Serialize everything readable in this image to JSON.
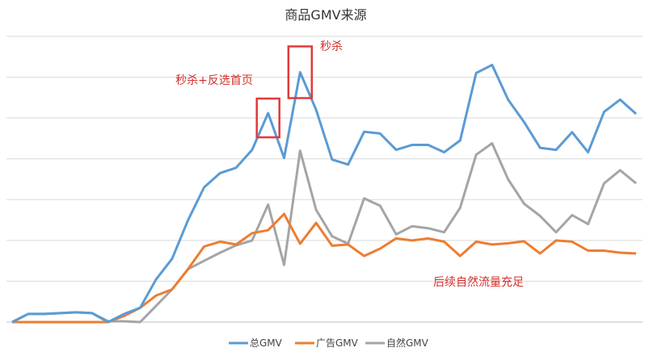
{
  "chart_data": {
    "type": "line",
    "title": "商品GMV来源",
    "xlabel": "",
    "ylabel": "",
    "ylim": [
      0,
      7
    ],
    "grid": true,
    "legend": "bottom",
    "x": [
      0,
      1,
      2,
      3,
      4,
      5,
      6,
      7,
      8,
      9,
      10,
      11,
      12,
      13,
      14,
      15,
      16,
      17,
      18,
      19,
      20,
      21,
      22,
      23,
      24,
      25,
      26,
      27,
      28,
      29,
      30,
      31,
      32,
      33,
      34,
      35,
      36,
      37,
      38,
      39
    ],
    "series": [
      {
        "name": "总GMV",
        "color": "#5b9bd5",
        "values": [
          0,
          0.2,
          0.2,
          0.22,
          0.24,
          0.22,
          0,
          0.2,
          0.35,
          1.05,
          1.55,
          2.5,
          3.3,
          3.65,
          3.78,
          4.22,
          5.12,
          4.02,
          6.12,
          5.2,
          3.98,
          3.86,
          4.66,
          4.62,
          4.22,
          4.34,
          4.34,
          4.16,
          4.45,
          6.1,
          6.3,
          5.45,
          4.9,
          4.27,
          4.22,
          4.65,
          4.16,
          5.15,
          5.45,
          5.1
        ]
      },
      {
        "name": "广告GMV",
        "color": "#ed7d31",
        "values": [
          0,
          0,
          0,
          0,
          0,
          0,
          0,
          0.15,
          0.35,
          0.65,
          0.8,
          1.3,
          1.85,
          1.97,
          1.9,
          2.18,
          2.25,
          2.65,
          1.92,
          2.43,
          1.87,
          1.9,
          1.62,
          1.8,
          2.05,
          2.0,
          2.05,
          1.97,
          1.62,
          1.97,
          1.9,
          1.93,
          1.98,
          1.68,
          2.0,
          1.97,
          1.75,
          1.75,
          1.7,
          1.68
        ]
      },
      {
        "name": "自然GMV",
        "color": "#a5a5a5",
        "values": [
          0,
          0.2,
          0.2,
          0.22,
          0.24,
          0.22,
          0.02,
          0.02,
          0,
          0.4,
          0.8,
          1.3,
          1.5,
          1.7,
          1.88,
          2.0,
          2.88,
          1.4,
          4.2,
          2.75,
          2.1,
          1.92,
          3.03,
          2.85,
          2.15,
          2.35,
          2.3,
          2.2,
          2.8,
          4.1,
          4.38,
          3.5,
          2.9,
          2.6,
          2.2,
          2.62,
          2.4,
          3.4,
          3.72,
          3.4
        ]
      }
    ],
    "annotations": [
      {
        "text": "秒杀+反选首页",
        "index": 16
      },
      {
        "text": "秒杀",
        "index": 18
      },
      {
        "text": "后续自然流量充足",
        "index": 28
      }
    ]
  },
  "colors": {
    "grid": "#d9d9d9",
    "highlight": "#e03a3a",
    "annotation_text": "#d0312d"
  }
}
